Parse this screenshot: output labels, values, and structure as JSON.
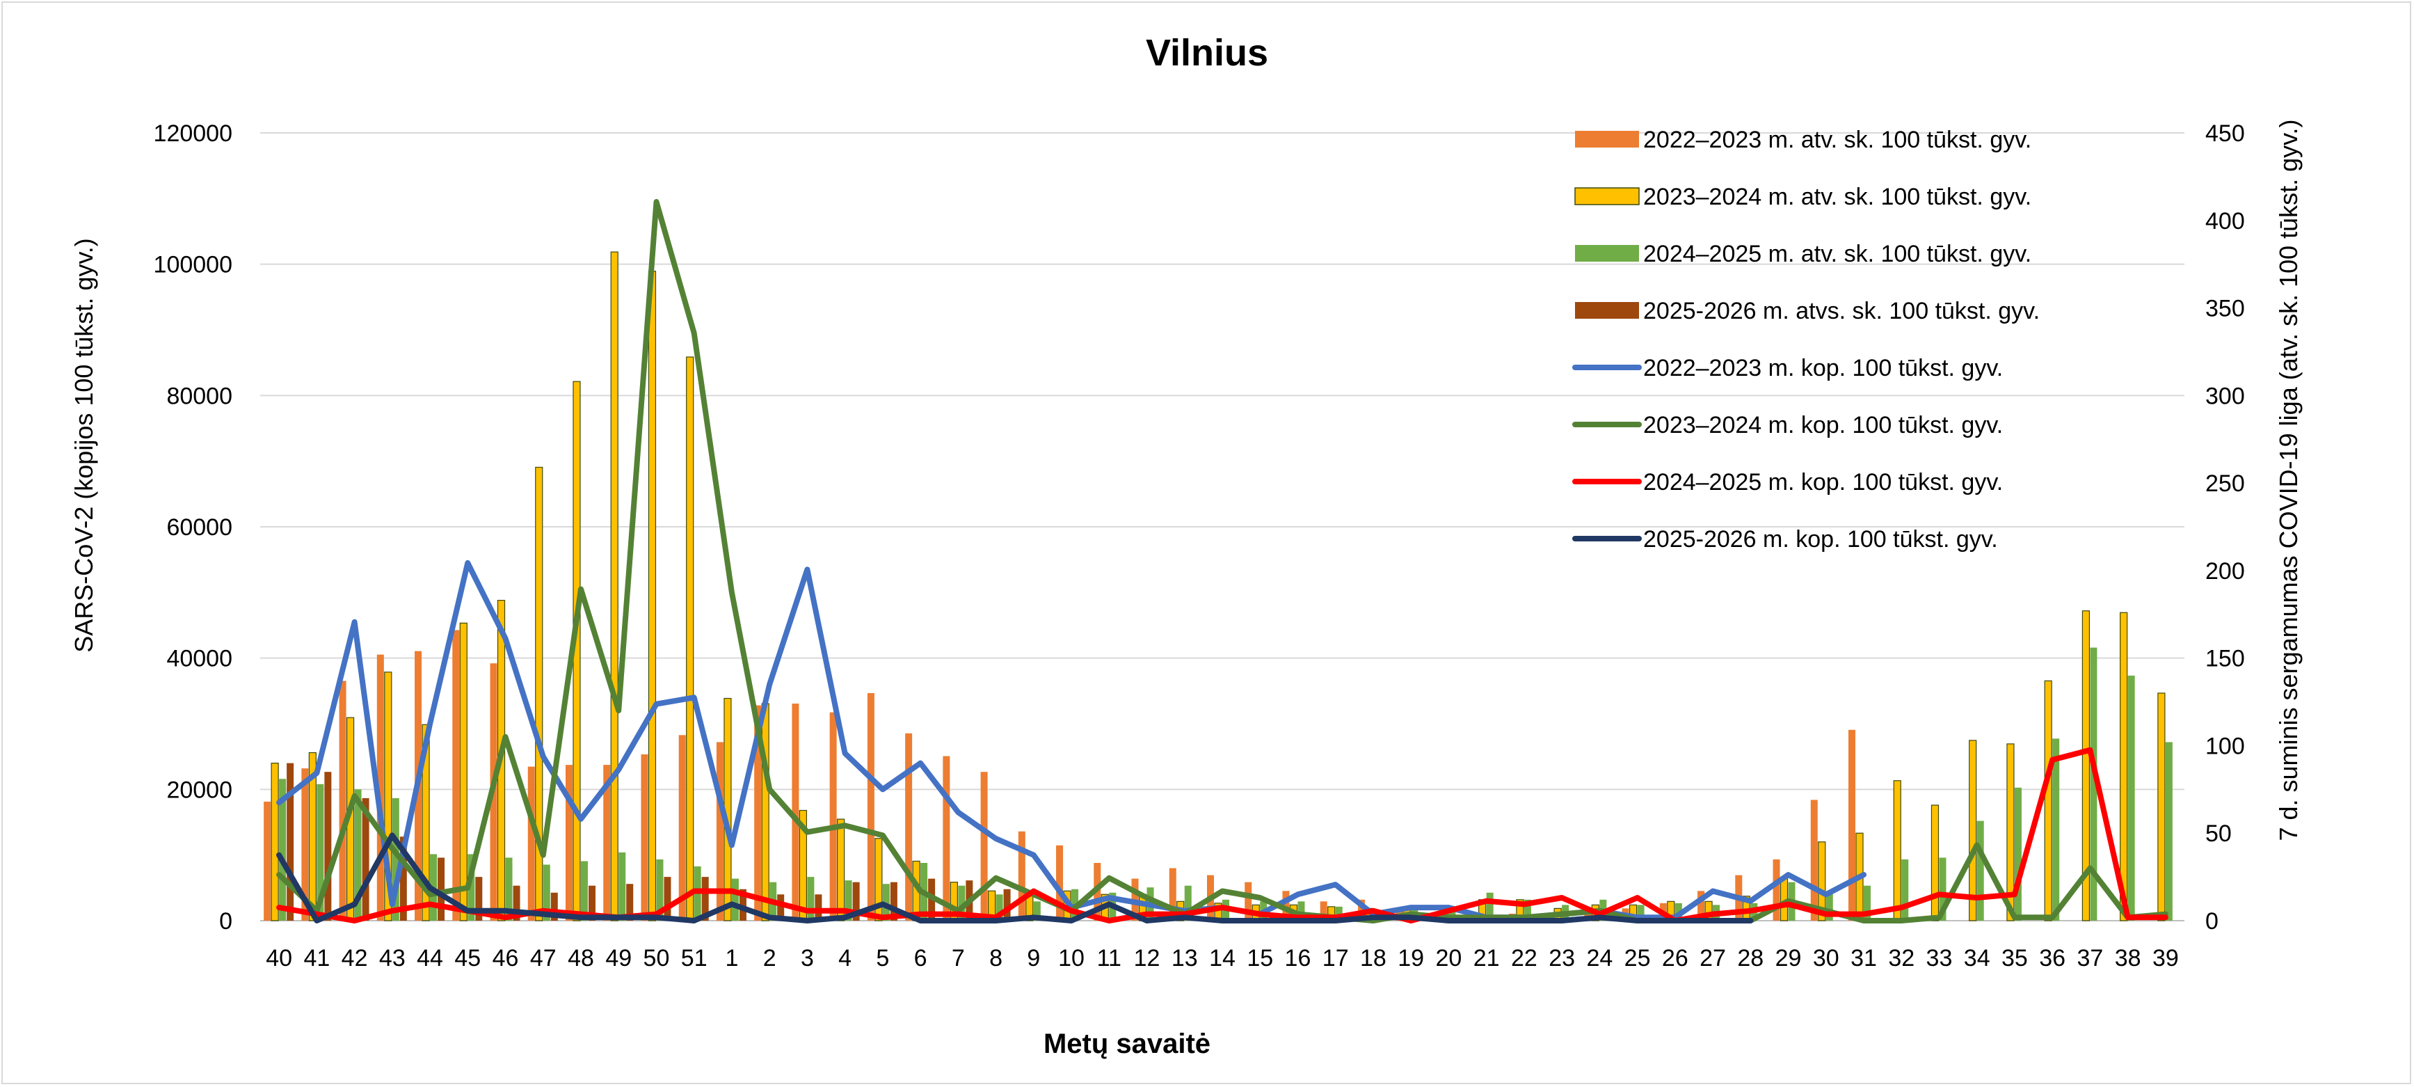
{
  "chart_data": {
    "type": "bar+line",
    "title": "Vilnius",
    "xlabel": "Metų savaitė",
    "ylabel_left": "SARS-CoV-2  (kopijos 100 tūkst. gyv.)",
    "ylabel_right": "7 d. suminis sergamumas COVID-19 liga (atv. sk. 100 tūkst. gyv.)",
    "ylim_left": [
      0,
      120000
    ],
    "ylim_right": [
      0,
      450
    ],
    "yticks_left": [
      "0",
      "20000",
      "40000",
      "60000",
      "80000",
      "100000",
      "120000"
    ],
    "yticks_right": [
      "0",
      "50",
      "100",
      "150",
      "200",
      "250",
      "300",
      "350",
      "400",
      "450"
    ],
    "grid": true,
    "legend_position": "top-right",
    "categories": [
      "40",
      "41",
      "42",
      "43",
      "44",
      "45",
      "46",
      "47",
      "48",
      "49",
      "50",
      "51",
      "1",
      "2",
      "3",
      "4",
      "5",
      "6",
      "7",
      "8",
      "9",
      "10",
      "11",
      "12",
      "13",
      "14",
      "15",
      "16",
      "17",
      "18",
      "19",
      "20",
      "21",
      "22",
      "23",
      "24",
      "25",
      "26",
      "27",
      "28",
      "29",
      "30",
      "31",
      "32",
      "33",
      "34",
      "35",
      "36",
      "37",
      "38",
      "39"
    ],
    "bar_series": [
      {
        "name": "2022–2023 m. atv. sk. 100 tūkst. gyv.",
        "axis": "right",
        "color": "#ED7D31",
        "values": [
          68,
          87,
          137,
          152,
          154,
          166,
          147,
          88,
          89,
          89,
          95,
          106,
          102,
          123,
          124,
          119,
          130,
          107,
          94,
          85,
          51,
          43,
          33,
          24,
          30,
          26,
          22,
          17,
          11,
          12,
          7,
          4,
          3,
          4,
          4,
          6,
          7,
          10,
          17,
          26,
          35,
          69,
          109,
          null,
          null,
          null,
          null,
          null,
          null,
          null,
          null
        ]
      },
      {
        "name": "2023–2024 m. atv. sk. 100 tūkst. gyv.",
        "axis": "right",
        "color": "#FFC000",
        "values": [
          90,
          96,
          116,
          142,
          112,
          170,
          183,
          259,
          308,
          382,
          371,
          322,
          127,
          124,
          63,
          58,
          47,
          34,
          22,
          17,
          14,
          17,
          15,
          15,
          11,
          10,
          9,
          9,
          8,
          7,
          6,
          7,
          12,
          12,
          7,
          9,
          9,
          11,
          11,
          14,
          24,
          45,
          50,
          80,
          66,
          103,
          101,
          137,
          177,
          176,
          130
        ]
      },
      {
        "name": "2024–2025 m. atv. sk. 100 tūkst. gyv.",
        "axis": "right",
        "color": "#70AD47",
        "values": [
          81,
          78,
          75,
          70,
          38,
          38,
          36,
          32,
          34,
          39,
          35,
          31,
          24,
          22,
          25,
          23,
          21,
          33,
          20,
          15,
          11,
          18,
          16,
          19,
          20,
          12,
          11,
          11,
          8,
          4,
          7,
          8,
          16,
          12,
          9,
          12,
          9,
          10,
          9,
          10,
          22,
          16,
          20,
          35,
          36,
          57,
          76,
          104,
          156,
          140,
          102
        ]
      },
      {
        "name": "2025-2026 m. atvs. sk. 100 tūkst. gyv.",
        "axis": "right",
        "color": "#9E480E",
        "values": [
          90,
          85,
          70,
          48,
          36,
          25,
          20,
          16,
          20,
          21,
          25,
          25,
          18,
          15,
          15,
          22,
          22,
          24,
          23,
          18,
          null,
          null,
          null,
          null,
          null,
          null,
          null,
          null,
          null,
          null,
          null,
          null,
          null,
          null,
          null,
          null,
          null,
          null,
          null,
          null,
          null,
          null,
          null,
          null,
          null,
          null,
          null,
          null,
          null,
          null,
          null
        ]
      }
    ],
    "line_series": [
      {
        "name": "2022–2023 m. kop. 100 tūkst. gyv.",
        "axis": "left",
        "color": "#4472C4",
        "values": [
          18000,
          22500,
          45500,
          2500,
          30000,
          54500,
          43000,
          25000,
          15500,
          23000,
          33000,
          34000,
          11500,
          36000,
          53500,
          25500,
          20000,
          24000,
          16500,
          12500,
          10000,
          2000,
          3500,
          2500,
          1500,
          2000,
          1000,
          4000,
          5500,
          1000,
          2000,
          2000,
          500,
          500,
          1000,
          1500,
          500,
          500,
          4500,
          3000,
          7000,
          4000,
          7000,
          null,
          null,
          null,
          null,
          null,
          null,
          null,
          null
        ]
      },
      {
        "name": "2023–2024 m. kop. 100 tūkst. gyv.",
        "axis": "left",
        "color": "#548235",
        "values": [
          7000,
          1500,
          19000,
          11000,
          4000,
          5000,
          28000,
          10000,
          50500,
          32000,
          109500,
          89500,
          50000,
          20000,
          13500,
          14500,
          13000,
          4500,
          1500,
          6500,
          4000,
          1500,
          6500,
          3500,
          1000,
          4500,
          3500,
          1000,
          500,
          0,
          1000,
          500,
          500,
          500,
          1000,
          1500,
          0,
          0,
          0,
          0,
          3000,
          1500,
          0,
          0,
          500,
          11500,
          500,
          500,
          8000,
          500,
          1000
        ]
      },
      {
        "name": "2024–2025 m. kop. 100 tūkst. gyv.",
        "axis": "left",
        "color": "#FF0000",
        "values": [
          2000,
          1000,
          0,
          1500,
          2500,
          1500,
          500,
          1500,
          1000,
          500,
          1000,
          4500,
          4500,
          3000,
          1500,
          1500,
          500,
          1000,
          1000,
          500,
          4500,
          1500,
          0,
          1000,
          1000,
          2000,
          1000,
          500,
          500,
          1500,
          0,
          1500,
          3000,
          2500,
          3500,
          1000,
          3500,
          0,
          1000,
          1500,
          2500,
          1000,
          1000,
          2000,
          4000,
          3500,
          4000,
          24500,
          26000,
          500,
          500
        ]
      },
      {
        "name": "2025-2026 m. kop. 100 tūkst. gyv.",
        "axis": "left",
        "color": "#203864",
        "values": [
          10000,
          0,
          2500,
          13000,
          5000,
          1500,
          1500,
          1000,
          500,
          500,
          500,
          0,
          2500,
          500,
          0,
          500,
          2500,
          0,
          0,
          0,
          500,
          0,
          2500,
          0,
          500,
          0,
          0,
          0,
          0,
          500,
          500,
          0,
          0,
          0,
          0,
          500,
          0,
          0,
          0,
          0,
          null,
          null,
          null,
          null,
          null,
          null,
          null,
          null,
          null,
          null,
          null
        ]
      }
    ]
  }
}
